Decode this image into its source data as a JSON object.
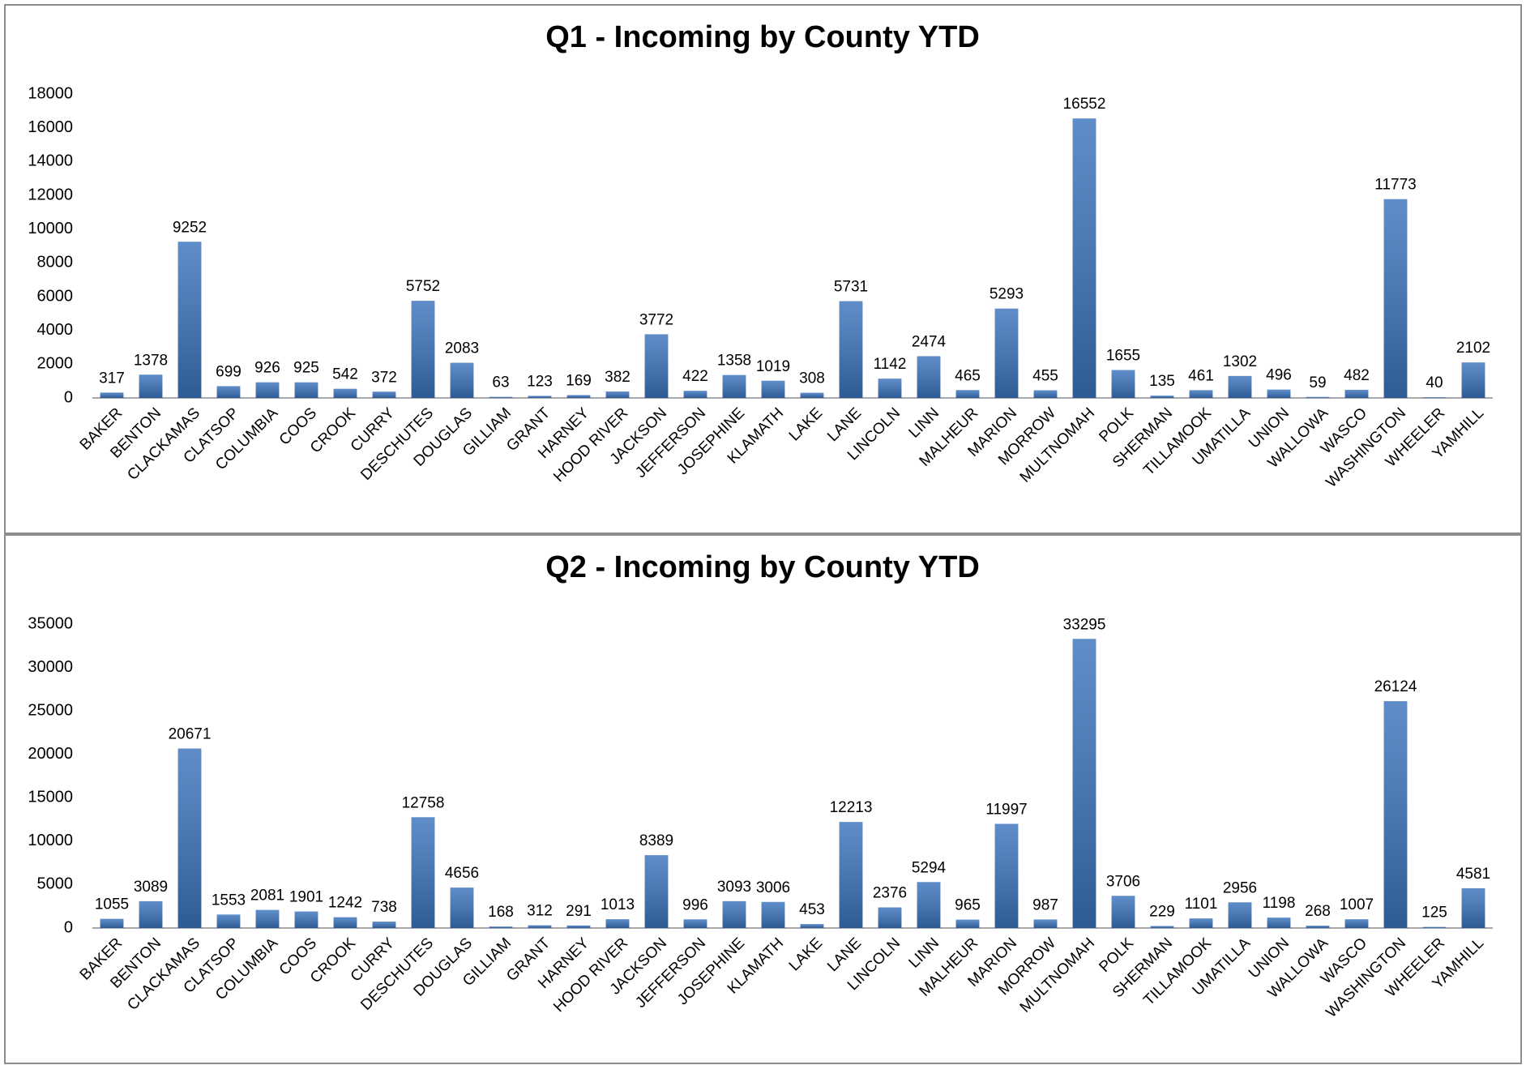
{
  "chart_data": [
    {
      "type": "bar",
      "title": "Q1 - Incoming by County YTD",
      "categories": [
        "BAKER",
        "BENTON",
        "CLACKAMAS",
        "CLATSOP",
        "COLUMBIA",
        "COOS",
        "CROOK",
        "CURRY",
        "DESCHUTES",
        "DOUGLAS",
        "GILLIAM",
        "GRANT",
        "HARNEY",
        "HOOD RIVER",
        "JACKSON",
        "JEFFERSON",
        "JOSEPHINE",
        "KLAMATH",
        "LAKE",
        "LANE",
        "LINCOLN",
        "LINN",
        "MALHEUR",
        "MARION",
        "MORROW",
        "MULTNOMAH",
        "POLK",
        "SHERMAN",
        "TILLAMOOK",
        "UMATILLA",
        "UNION",
        "WALLOWA",
        "WASCO",
        "WASHINGTON",
        "WHEELER",
        "YAMHILL"
      ],
      "values": [
        317,
        1378,
        9252,
        699,
        926,
        925,
        542,
        372,
        5752,
        2083,
        63,
        123,
        169,
        382,
        3772,
        422,
        1358,
        1019,
        308,
        5731,
        1142,
        2474,
        465,
        5293,
        455,
        16552,
        1655,
        135,
        461,
        1302,
        496,
        59,
        482,
        11773,
        40,
        2102
      ],
      "color": "#3b74bd",
      "ylim": [
        0,
        18000
      ],
      "yticks": [
        0,
        2000,
        4000,
        6000,
        8000,
        10000,
        12000,
        14000,
        16000,
        18000
      ],
      "grid": false
    },
    {
      "type": "bar",
      "title": "Q2 - Incoming by County YTD",
      "categories": [
        "BAKER",
        "BENTON",
        "CLACKAMAS",
        "CLATSOP",
        "COLUMBIA",
        "COOS",
        "CROOK",
        "CURRY",
        "DESCHUTES",
        "DOUGLAS",
        "GILLIAM",
        "GRANT",
        "HARNEY",
        "HOOD RIVER",
        "JACKSON",
        "JEFFERSON",
        "JOSEPHINE",
        "KLAMATH",
        "LAKE",
        "LANE",
        "LINCOLN",
        "LINN",
        "MALHEUR",
        "MARION",
        "MORROW",
        "MULTNOMAH",
        "POLK",
        "SHERMAN",
        "TILLAMOOK",
        "UMATILLA",
        "UNION",
        "WALLOWA",
        "WASCO",
        "WASHINGTON",
        "WHEELER",
        "YAMHILL"
      ],
      "values": [
        1055,
        3089,
        20671,
        1553,
        2081,
        1901,
        1242,
        738,
        12758,
        4656,
        168,
        312,
        291,
        1013,
        8389,
        996,
        3093,
        3006,
        453,
        12213,
        2376,
        5294,
        965,
        11997,
        987,
        33295,
        3706,
        229,
        1101,
        2956,
        1198,
        268,
        1007,
        26124,
        125,
        4581
      ],
      "color": "#3b74bd",
      "ylim": [
        0,
        35000
      ],
      "yticks": [
        0,
        5000,
        10000,
        15000,
        20000,
        25000,
        30000,
        35000
      ],
      "grid": false
    }
  ]
}
